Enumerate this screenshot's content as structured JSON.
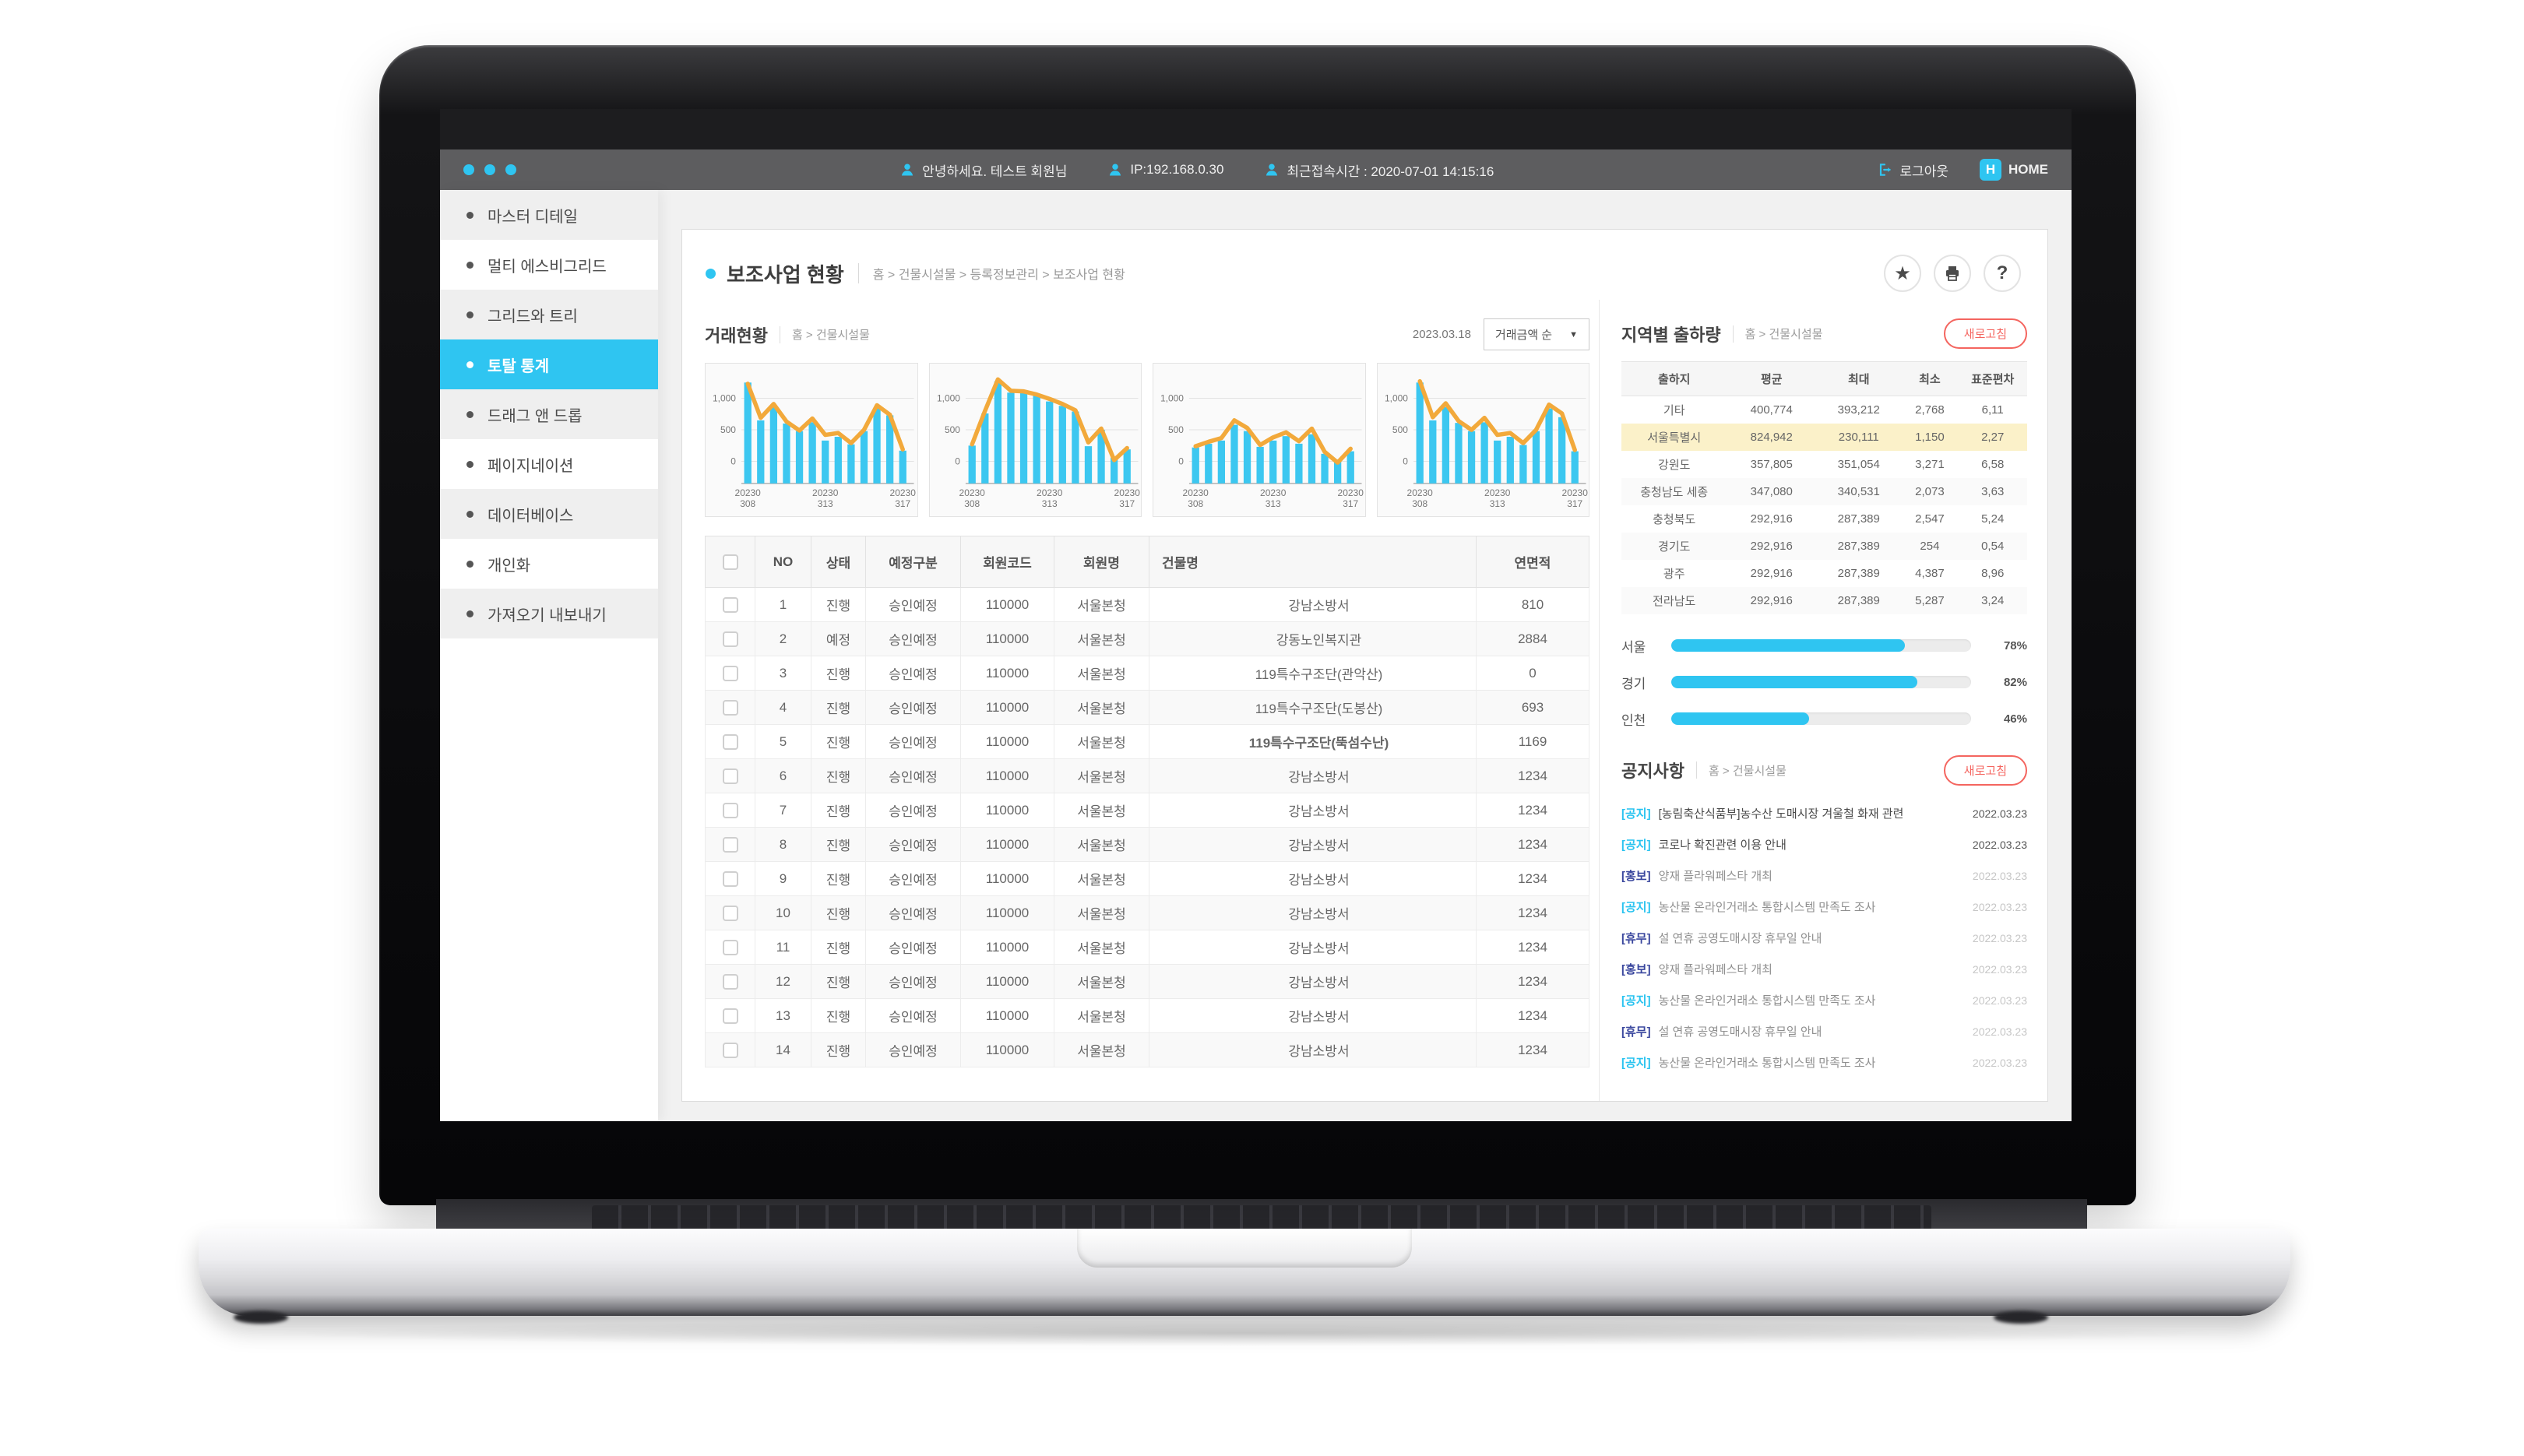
{
  "colors": {
    "accent": "#2fc5f1",
    "line": "#f2a93b",
    "refresh": "#f4655f",
    "highlight_row": "#fbf1c9",
    "tag_navy": "#3a479e"
  },
  "topbar": {
    "greeting": "안녕하세요. 테스트 회원님",
    "ip": "IP:192.168.0.30",
    "last_access": "최근접속시간 : 2020-07-01 14:15:16",
    "logout_label": "로그아웃",
    "home_label": "HOME",
    "home_badge": "H"
  },
  "sidebar": {
    "items": [
      {
        "label": "마스터 디테일",
        "active": false
      },
      {
        "label": "멀티 에스비그리드",
        "active": false
      },
      {
        "label": "그리드와 트리",
        "active": false
      },
      {
        "label": "토탈 통계",
        "active": true
      },
      {
        "label": "드래그 앤 드롭",
        "active": false
      },
      {
        "label": "페이지네이션",
        "active": false
      },
      {
        "label": "데이터베이스",
        "active": false
      },
      {
        "label": "개인화",
        "active": false
      },
      {
        "label": "가져오기 내보내기",
        "active": false
      }
    ]
  },
  "page": {
    "title": "보조사업 현황",
    "breadcrumb": "홈 > 건물시설물 > 등록정보관리 > 보조사업 현황",
    "help_label": "?"
  },
  "transactions": {
    "title": "거래현황",
    "breadcrumb": "홈 > 건물시설물",
    "date": "2023.03.18",
    "sort_label": "거래금액 순",
    "sort_caret": "▼"
  },
  "chart_data": [
    {
      "type": "bar+line",
      "ylim": [
        -350,
        1400
      ],
      "yticks": [
        1000,
        500,
        0
      ],
      "ytick_labels": [
        "1,000",
        "500",
        "0"
      ],
      "grid": true,
      "x_tick_indices": [
        0,
        6,
        12
      ],
      "x_tick_lines": [
        [
          "20230",
          "308"
        ],
        [
          "20230",
          "313"
        ],
        [
          "20230",
          "317"
        ]
      ],
      "bars": [
        1250,
        650,
        870,
        600,
        480,
        620,
        330,
        390,
        270,
        480,
        840,
        730,
        170
      ],
      "line": [
        1230,
        690,
        910,
        630,
        490,
        680,
        420,
        450,
        290,
        500,
        890,
        740,
        190
      ]
    },
    {
      "type": "bar+line",
      "ylim": [
        -350,
        1400
      ],
      "yticks": [
        1000,
        500,
        0
      ],
      "ytick_labels": [
        "1,000",
        "500",
        "0"
      ],
      "grid": true,
      "x_tick_indices": [
        0,
        6,
        12
      ],
      "x_tick_lines": [
        [
          "20230",
          "308"
        ],
        [
          "20230",
          "313"
        ],
        [
          "20230",
          "317"
        ]
      ],
      "bars": [
        250,
        760,
        1270,
        1090,
        1100,
        1040,
        950,
        880,
        790,
        240,
        500,
        60,
        190
      ],
      "line": [
        270,
        800,
        1300,
        1120,
        1110,
        1060,
        990,
        910,
        810,
        300,
        520,
        20,
        210
      ]
    },
    {
      "type": "bar+line",
      "ylim": [
        -350,
        1400
      ],
      "yticks": [
        1000,
        500,
        0
      ],
      "ytick_labels": [
        "1,000",
        "500",
        "0"
      ],
      "grid": true,
      "x_tick_indices": [
        0,
        6,
        12
      ],
      "x_tick_lines": [
        [
          "20230",
          "308"
        ],
        [
          "20230",
          "313"
        ],
        [
          "20230",
          "317"
        ]
      ],
      "bars": [
        220,
        280,
        330,
        580,
        480,
        230,
        330,
        400,
        280,
        430,
        120,
        30,
        160
      ],
      "line": [
        240,
        310,
        370,
        650,
        530,
        260,
        380,
        460,
        320,
        520,
        150,
        -20,
        200
      ]
    },
    {
      "type": "bar+line",
      "ylim": [
        -350,
        1400
      ],
      "yticks": [
        1000,
        500,
        0
      ],
      "ytick_labels": [
        "1,000",
        "500",
        "0"
      ],
      "grid": true,
      "x_tick_indices": [
        0,
        6,
        12
      ],
      "x_tick_lines": [
        [
          "20230",
          "308"
        ],
        [
          "20230",
          "313"
        ],
        [
          "20230",
          "317"
        ]
      ],
      "bars": [
        1250,
        650,
        860,
        610,
        480,
        620,
        330,
        390,
        260,
        480,
        840,
        700,
        160
      ],
      "line": [
        1270,
        700,
        920,
        640,
        500,
        690,
        420,
        450,
        290,
        500,
        900,
        760,
        180
      ]
    }
  ],
  "table": {
    "columns": [
      "NO",
      "상태",
      "예정구분",
      "회원코드",
      "회원명",
      "건물명",
      "연면적"
    ],
    "rows": [
      {
        "no": "1",
        "status": "진행",
        "plan": "승인예정",
        "code": "110000",
        "member": "서울본청",
        "building": "강남소방서",
        "area": "810",
        "bold_building": false
      },
      {
        "no": "2",
        "status": "예정",
        "plan": "승인예정",
        "code": "110000",
        "member": "서울본청",
        "building": "강동노인복지관",
        "area": "2884",
        "bold_building": false
      },
      {
        "no": "3",
        "status": "진행",
        "plan": "승인예정",
        "code": "110000",
        "member": "서울본청",
        "building": "119특수구조단(관악산)",
        "area": "0",
        "bold_building": false
      },
      {
        "no": "4",
        "status": "진행",
        "plan": "승인예정",
        "code": "110000",
        "member": "서울본청",
        "building": "119특수구조단(도봉산)",
        "area": "693",
        "bold_building": false
      },
      {
        "no": "5",
        "status": "진행",
        "plan": "승인예정",
        "code": "110000",
        "member": "서울본청",
        "building": "119특수구조단(뚝섬수난)",
        "area": "1169",
        "bold_building": true
      },
      {
        "no": "6",
        "status": "진행",
        "plan": "승인예정",
        "code": "110000",
        "member": "서울본청",
        "building": "강남소방서",
        "area": "1234",
        "bold_building": false
      },
      {
        "no": "7",
        "status": "진행",
        "plan": "승인예정",
        "code": "110000",
        "member": "서울본청",
        "building": "강남소방서",
        "area": "1234",
        "bold_building": false
      },
      {
        "no": "8",
        "status": "진행",
        "plan": "승인예정",
        "code": "110000",
        "member": "서울본청",
        "building": "강남소방서",
        "area": "1234",
        "bold_building": false
      },
      {
        "no": "9",
        "status": "진행",
        "plan": "승인예정",
        "code": "110000",
        "member": "서울본청",
        "building": "강남소방서",
        "area": "1234",
        "bold_building": false
      },
      {
        "no": "10",
        "status": "진행",
        "plan": "승인예정",
        "code": "110000",
        "member": "서울본청",
        "building": "강남소방서",
        "area": "1234",
        "bold_building": false
      },
      {
        "no": "11",
        "status": "진행",
        "plan": "승인예정",
        "code": "110000",
        "member": "서울본청",
        "building": "강남소방서",
        "area": "1234",
        "bold_building": false
      },
      {
        "no": "12",
        "status": "진행",
        "plan": "승인예정",
        "code": "110000",
        "member": "서울본청",
        "building": "강남소방서",
        "area": "1234",
        "bold_building": false
      },
      {
        "no": "13",
        "status": "진행",
        "plan": "승인예정",
        "code": "110000",
        "member": "서울본청",
        "building": "강남소방서",
        "area": "1234",
        "bold_building": false
      },
      {
        "no": "14",
        "status": "진행",
        "plan": "승인예정",
        "code": "110000",
        "member": "서울본청",
        "building": "강남소방서",
        "area": "1234",
        "bold_building": false
      }
    ]
  },
  "regional": {
    "title": "지역별 출하량",
    "breadcrumb": "홈 > 건물시설물",
    "refresh_label": "새로고침",
    "columns": [
      "출하지",
      "평균",
      "최대",
      "최소",
      "표준편차"
    ],
    "rows": [
      {
        "cells": [
          "기타",
          "400,774",
          "393,212",
          "2,768",
          "6,11"
        ],
        "highlight": false
      },
      {
        "cells": [
          "서울특별시",
          "824,942",
          "230,111",
          "1,150",
          "2,27"
        ],
        "highlight": true
      },
      {
        "cells": [
          "강원도",
          "357,805",
          "351,054",
          "3,271",
          "6,58"
        ],
        "highlight": false
      },
      {
        "cells": [
          "충청남도 세종",
          "347,080",
          "340,531",
          "2,073",
          "3,63"
        ],
        "highlight": false
      },
      {
        "cells": [
          "충청북도",
          "292,916",
          "287,389",
          "2,547",
          "5,24"
        ],
        "highlight": false
      },
      {
        "cells": [
          "경기도",
          "292,916",
          "287,389",
          "254",
          "0,54"
        ],
        "highlight": false
      },
      {
        "cells": [
          "광주",
          "292,916",
          "287,389",
          "4,387",
          "8,96"
        ],
        "highlight": false
      },
      {
        "cells": [
          "전라남도",
          "292,916",
          "287,389",
          "5,287",
          "3,24"
        ],
        "highlight": false
      }
    ],
    "progress": [
      {
        "label": "서울",
        "pct_label": "78%",
        "value": 78
      },
      {
        "label": "경기",
        "pct_label": "82%",
        "value": 82
      },
      {
        "label": "인천",
        "pct_label": "46%",
        "value": 46
      }
    ]
  },
  "notices": {
    "title": "공지사항",
    "breadcrumb": "홈 > 건물시설물",
    "refresh_label": "새로고침",
    "items": [
      {
        "tag": "[공지]",
        "tag_color": "cyan",
        "title": "[농림축산식품부]농수산 도매시장 겨울철 화재 관련",
        "date": "2022.03.23",
        "muted": false
      },
      {
        "tag": "[공지]",
        "tag_color": "cyan",
        "title": "코로나 확진관련 이용 안내",
        "date": "2022.03.23",
        "muted": false
      },
      {
        "tag": "[홍보]",
        "tag_color": "navy",
        "title": "양재 플라워페스타 개최",
        "date": "2022.03.23",
        "muted": true
      },
      {
        "tag": "[공지]",
        "tag_color": "cyan",
        "title": "농산물 온라인거래소 통합시스템 만족도 조사",
        "date": "2022.03.23",
        "muted": true
      },
      {
        "tag": "[휴무]",
        "tag_color": "navy",
        "title": "설 연휴 공영도매시장 휴무일 안내",
        "date": "2022.03.23",
        "muted": true
      },
      {
        "tag": "[홍보]",
        "tag_color": "navy",
        "title": "양재 플라워페스타 개최",
        "date": "2022.03.23",
        "muted": true
      },
      {
        "tag": "[공지]",
        "tag_color": "cyan",
        "title": "농산물 온라인거래소 통합시스템 만족도 조사",
        "date": "2022.03.23",
        "muted": true
      },
      {
        "tag": "[휴무]",
        "tag_color": "navy",
        "title": "설 연휴 공영도매시장 휴무일 안내",
        "date": "2022.03.23",
        "muted": true
      },
      {
        "tag": "[공지]",
        "tag_color": "cyan",
        "title": "농산물 온라인거래소 통합시스템 만족도 조사",
        "date": "2022.03.23",
        "muted": true
      }
    ]
  }
}
